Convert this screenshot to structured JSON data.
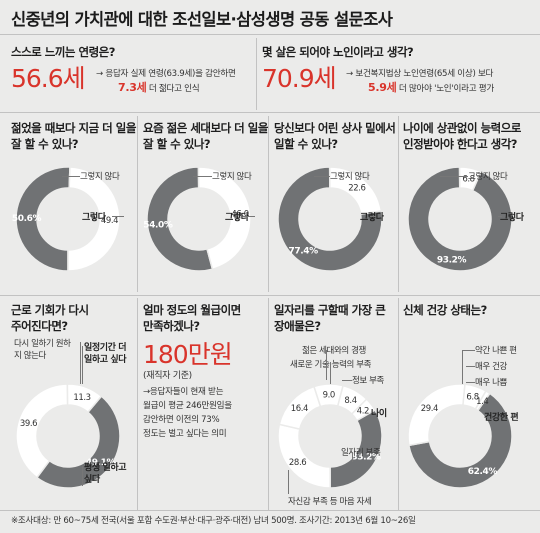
{
  "title": "신중년의 가치관에 대한 조선일보·삼성생명 공동 설문조사",
  "footnote": "※조사대상: 만 60~75세 전국(서울 포함 수도권·부산·대구·광주·대전) 남녀 500명. 조사기간: 2013년 6월 10~26일",
  "top_left": {
    "question": "스스로 느끼는 연령은?",
    "value": "56.6세",
    "note_line1": "→ 응답자 실제 연령(63.9세)을 감안하면",
    "note_value": "7.3세",
    "note_line2": " 더 젊다고 인식"
  },
  "top_right": {
    "question": "몇 살은 되어야 노인이라고 생각?",
    "value": "70.9세",
    "note_line1": "→ 보건복지법상 노인연령(65세 이상) 보다",
    "note_value": "5.9세",
    "note_line2": " 더 많아야 '노인'이라고 평가"
  },
  "middle_left": {
    "question_line1": "얼마 정도의 월급이면",
    "question_line2": "만족하겠나?",
    "value": "180만원",
    "sub": "(재직자 기준)",
    "note_lines": [
      "→응답자들이 현재 받는",
      "월급이 평균 246만원임을",
      "감안하면 이전의 73%",
      "정도는 벌고 싶다는 의미"
    ]
  },
  "colors": {
    "dark": "#707274",
    "light": "#ffffff",
    "accent": "#d9342b",
    "background": "#ebebea"
  },
  "chart_data": [
    {
      "type": "pie",
      "title_line1": "젊었을 때보다 지금 더 일을",
      "title_line2": "잘 할 수 있나?",
      "series": [
        {
          "name": "그렇다",
          "value": 50.6,
          "label": "50.6%"
        },
        {
          "name": "그렇지 않다",
          "value": 49.4,
          "label": "49.4"
        }
      ]
    },
    {
      "type": "pie",
      "title_line1": "요즘 젊은 세대보다 더 일을",
      "title_line2": "잘 할 수 있나?",
      "series": [
        {
          "name": "그렇다",
          "value": 54.0,
          "label": "54.0%"
        },
        {
          "name": "그렇지 않다",
          "value": 46.0,
          "label": "46.0"
        }
      ]
    },
    {
      "type": "pie",
      "title_line1": "당신보다 어린 상사 밑에서",
      "title_line2": "일할 수 있나?",
      "series": [
        {
          "name": "그렇다",
          "value": 77.4,
          "label": "77.4%"
        },
        {
          "name": "그렇지 않다",
          "value": 22.6,
          "label": "22.6"
        }
      ]
    },
    {
      "type": "pie",
      "title_line1": "나이에 상관없이 능력으로",
      "title_line2": "인정받아야 한다고 생각?",
      "series": [
        {
          "name": "그렇다",
          "value": 93.2,
          "label": "93.2%"
        },
        {
          "name": "그렇지 않다",
          "value": 6.8,
          "label": "6.8"
        }
      ]
    },
    {
      "type": "pie",
      "title_line1": "근로 기회가 다시",
      "title_line2": "주어진다면?",
      "series": [
        {
          "name": "일정기간 더 일하고 싶다",
          "value": 49.1,
          "label": "49.1%"
        },
        {
          "name": "평생 일하고 싶다",
          "value": 39.6,
          "label": "39.6"
        },
        {
          "name": "다시 일하기 원하지 않는다",
          "value": 11.3,
          "label": "11.3"
        }
      ]
    },
    {
      "type": "pie",
      "title_line1": "일자리를 구할때 가장 큰",
      "title_line2": "장애물은?",
      "series": [
        {
          "name": "나이",
          "value": 33.2,
          "label": "33.2%"
        },
        {
          "name": "일자리 부족",
          "value": 28.6,
          "label": "28.6"
        },
        {
          "name": "자신감 부족 등 마음 자세",
          "value": 16.4,
          "label": "16.4"
        },
        {
          "name": "정보 부족",
          "value": 9.0,
          "label": "9.0"
        },
        {
          "name": "새로운 기술·능력의 부족",
          "value": 8.4,
          "label": "8.4"
        },
        {
          "name": "젊은 세대와의 경쟁",
          "value": 4.2,
          "label": "4.2"
        }
      ]
    },
    {
      "type": "pie",
      "title_line1": "신체 건강 상태는?",
      "title_line2": "",
      "series": [
        {
          "name": "건강한 편",
          "value": 62.4,
          "label": "62.4%"
        },
        {
          "name": "매우 건강",
          "value": 29.4,
          "label": "29.4"
        },
        {
          "name": "약간 나쁜 편",
          "value": 6.8,
          "label": "6.8"
        },
        {
          "name": "매우 나쁨",
          "value": 1.4,
          "label": "1.4"
        }
      ]
    }
  ]
}
